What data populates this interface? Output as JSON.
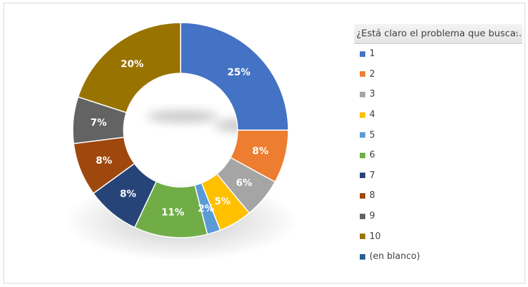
{
  "chart_data": {
    "type": "donut",
    "legend_title": "¿Está claro el problema que busca...",
    "legend_position": "right",
    "unit": "%",
    "categories": [
      "1",
      "2",
      "3",
      "4",
      "5",
      "6",
      "7",
      "8",
      "9",
      "10",
      "(en blanco)"
    ],
    "values": [
      25,
      8,
      6,
      5,
      2,
      11,
      8,
      8,
      7,
      20,
      0
    ],
    "data_labels": [
      "25%",
      "8%",
      "6%",
      "5%",
      "2%",
      "11%",
      "8%",
      "8%",
      "7%",
      "20%",
      ""
    ],
    "colors": [
      "#4472C4",
      "#ED7D31",
      "#A5A5A5",
      "#FFC000",
      "#5B9BD5",
      "#70AD47",
      "#264478",
      "#9E480E",
      "#636363",
      "#997300",
      "#255E91"
    ]
  }
}
